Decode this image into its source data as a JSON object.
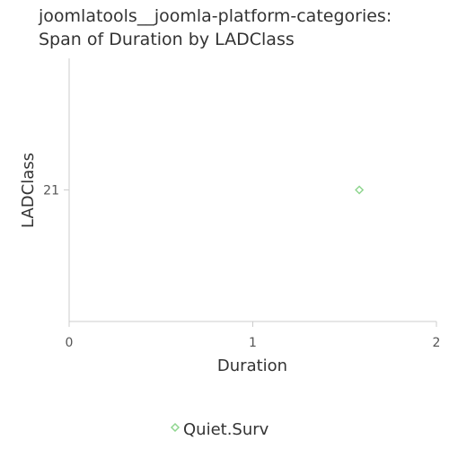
{
  "chart_data": {
    "type": "scatter",
    "title_lines": [
      "joomlatools__joomla-platform-categories:",
      "Span of Duration by LADClass"
    ],
    "xlabel": "Duration",
    "ylabel": "LADClass",
    "xlim": [
      0,
      2
    ],
    "x_ticks": [
      0,
      1,
      2
    ],
    "y_ticks": [
      21
    ],
    "ylim": [
      20,
      22
    ],
    "grid": false,
    "legend_position": "bottom",
    "series": [
      {
        "name": "Quiet.Surv",
        "color": "#8fd68f",
        "marker": "diamond",
        "points": [
          {
            "x": 1.58,
            "y": 21
          }
        ]
      }
    ]
  }
}
